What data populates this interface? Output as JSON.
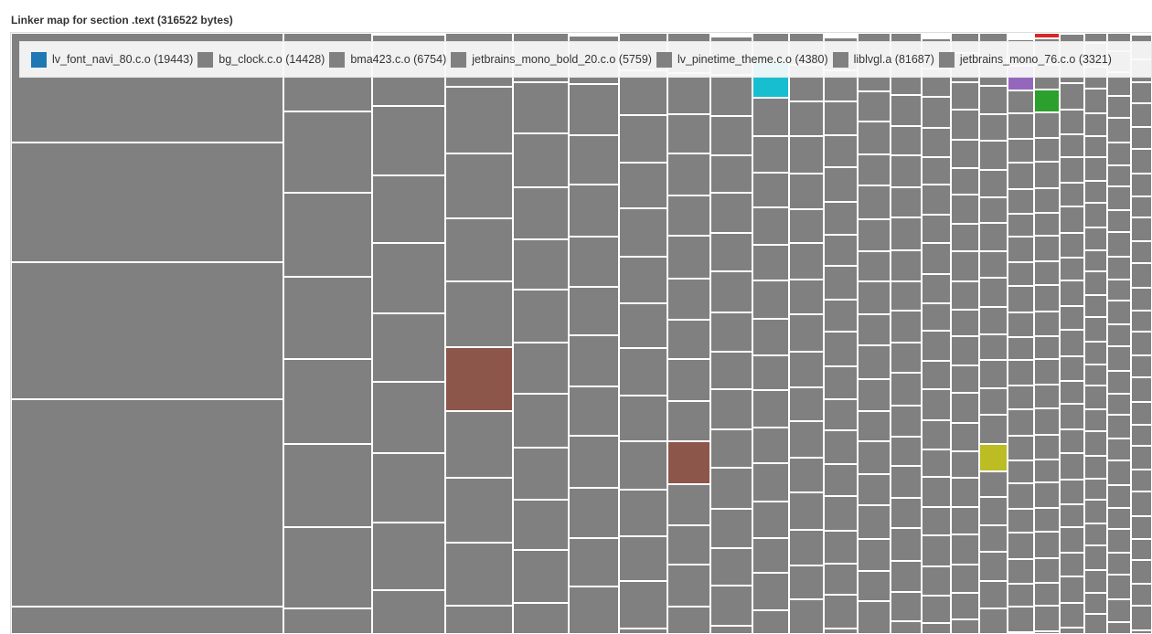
{
  "chart_data": {
    "type": "treemap",
    "title": "Linker map for section .text (316522 bytes)",
    "total_bytes": 316522,
    "legend": [
      {
        "name": "lv_font_navi_80.c.o (19443)",
        "color": "#1f77b4"
      },
      {
        "name": "bg_clock.c.o (14428)",
        "color": "#808080"
      },
      {
        "name": "bma423.c.o (6754)",
        "color": "#808080"
      },
      {
        "name": "jetbrains_mono_bold_20.c.o (5759)",
        "color": "#808080"
      },
      {
        "name": "lv_pinetime_theme.c.o (4380)",
        "color": "#808080"
      },
      {
        "name": "liblvgl.a (81687)",
        "color": "#808080"
      },
      {
        "name": "jetbrains_mono_76.c.o (3321)",
        "color": "#808080"
      }
    ],
    "tile_color": "#808080",
    "highlight_colors": [
      "#8c564b",
      "#17becf",
      "#bcbd22",
      "#2ca02c",
      "#d62728",
      "#9467bd"
    ]
  }
}
